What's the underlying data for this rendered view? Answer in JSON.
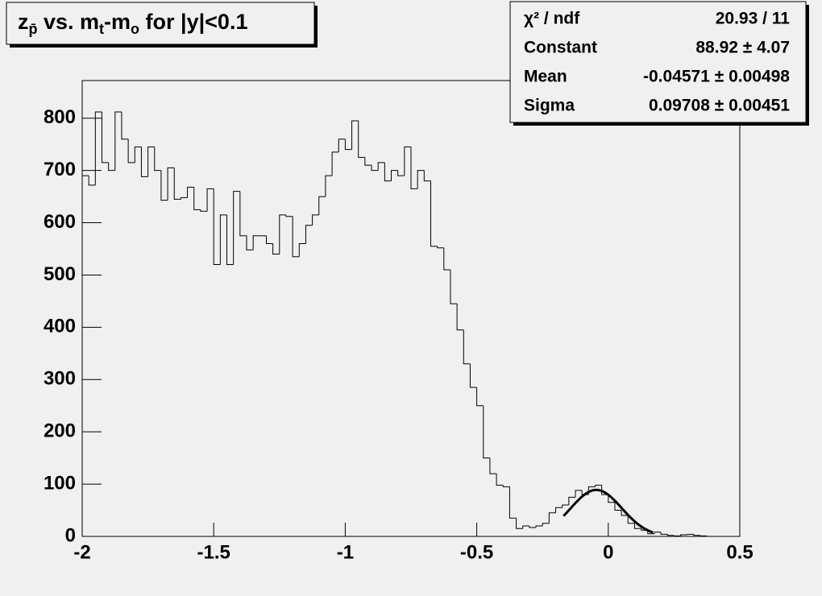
{
  "chart_data": {
    "type": "histogram",
    "title": [
      {
        "text": "z"
      },
      {
        "text": "p̄",
        "sub": true
      },
      {
        "text": " vs. m"
      },
      {
        "text": "t",
        "sub": true
      },
      {
        "text": "-m"
      },
      {
        "text": "o",
        "sub": true
      },
      {
        "text": " for |y|<0.1"
      }
    ],
    "bins": [
      -2,
      -1.975,
      -1.95,
      -1.925,
      -1.9,
      -1.875,
      -1.85,
      -1.825,
      -1.8,
      -1.775,
      -1.75,
      -1.725,
      -1.7,
      -1.675,
      -1.65,
      -1.625,
      -1.6,
      -1.575,
      -1.55,
      -1.525,
      -1.5,
      -1.475,
      -1.45,
      -1.425,
      -1.4,
      -1.375,
      -1.35,
      -1.325,
      -1.3,
      -1.275,
      -1.25,
      -1.225,
      -1.2,
      -1.175,
      -1.15,
      -1.125,
      -1.1,
      -1.075,
      -1.05,
      -1.025,
      -1,
      -0.975,
      -0.95,
      -0.925,
      -0.9,
      -0.875,
      -0.85,
      -0.825,
      -0.8,
      -0.775,
      -0.75,
      -0.725,
      -0.7,
      -0.675,
      -0.65,
      -0.625,
      -0.6,
      -0.575,
      -0.55,
      -0.525,
      -0.5,
      -0.475,
      -0.45,
      -0.425,
      -0.4,
      -0.375,
      -0.35,
      -0.325,
      -0.3,
      -0.275,
      -0.25,
      -0.225,
      -0.2,
      -0.175,
      -0.15,
      -0.125,
      -0.1,
      -0.075,
      -0.05,
      -0.025,
      0,
      0.025,
      0.05,
      0.075,
      0.1,
      0.125,
      0.15,
      0.175,
      0.2,
      0.225,
      0.25,
      0.275,
      0.3,
      0.325,
      0.35,
      0.375,
      0.4,
      0.425,
      0.45,
      0.475,
      0.5
    ],
    "values": [
      690,
      672,
      812,
      715,
      700,
      812,
      760,
      715,
      745,
      688,
      745,
      700,
      643,
      705,
      645,
      648,
      668,
      625,
      622,
      665,
      520,
      615,
      520,
      660,
      575,
      548,
      575,
      575,
      560,
      540,
      615,
      612,
      535,
      560,
      595,
      615,
      650,
      690,
      735,
      760,
      740,
      795,
      725,
      710,
      700,
      715,
      680,
      700,
      690,
      745,
      665,
      700,
      680,
      555,
      552,
      510,
      445,
      395,
      330,
      285,
      250,
      150,
      120,
      98,
      95,
      35,
      15,
      20,
      17,
      20,
      25,
      45,
      55,
      60,
      75,
      88,
      80,
      95,
      98,
      80,
      65,
      50,
      40,
      25,
      15,
      12,
      5,
      8,
      4,
      2,
      1,
      3,
      4,
      2,
      1,
      0,
      0,
      0,
      0,
      0
    ],
    "color": "#000000",
    "fit": {
      "constant": 88.92,
      "mean": -0.04571,
      "sigma": 0.09708,
      "range": [
        -0.17,
        0.17
      ],
      "color": "#000000"
    },
    "stats": [
      [
        "χ² / ndf",
        "20.93 / 11"
      ],
      [
        "Constant",
        "88.92 ± 4.07"
      ],
      [
        "Mean",
        "-0.04571 ± 0.00498"
      ],
      [
        "Sigma",
        "0.09708 ± 0.00451"
      ]
    ],
    "xlim": [
      -2,
      0.5
    ],
    "xticks": [
      -2,
      -1.5,
      -1,
      -0.5,
      0,
      0.5
    ],
    "ylim": [
      0,
      872
    ],
    "yticks": [
      0,
      100,
      200,
      300,
      400,
      500,
      600,
      700,
      800
    ]
  }
}
